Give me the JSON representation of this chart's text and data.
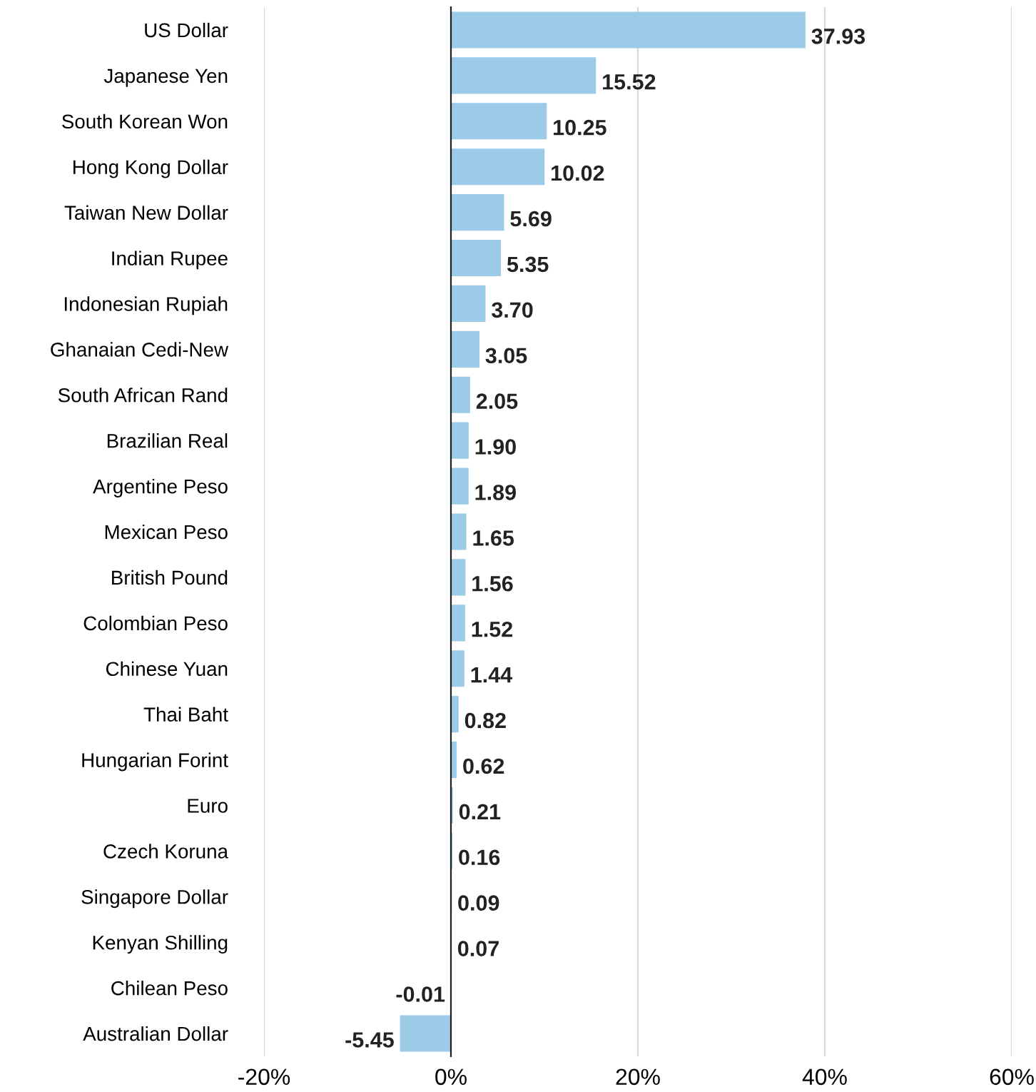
{
  "chart_data": {
    "type": "bar",
    "orientation": "horizontal",
    "categories": [
      "US Dollar",
      "Japanese Yen",
      "South Korean Won",
      "Hong Kong Dollar",
      "Taiwan New Dollar",
      "Indian Rupee",
      "Indonesian Rupiah",
      "Ghanaian Cedi-New",
      "South African Rand",
      "Brazilian Real",
      "Argentine Peso",
      "Mexican Peso",
      "British Pound",
      "Colombian Peso",
      "Chinese Yuan",
      "Thai Baht",
      "Hungarian Forint",
      "Euro",
      "Czech Koruna",
      "Singapore Dollar",
      "Kenyan Shilling",
      "Chilean Peso",
      "Australian Dollar"
    ],
    "values": [
      37.93,
      15.52,
      10.25,
      10.02,
      5.69,
      5.35,
      3.7,
      3.05,
      2.05,
      1.9,
      1.89,
      1.65,
      1.56,
      1.52,
      1.44,
      0.82,
      0.62,
      0.21,
      0.16,
      0.09,
      0.07,
      -0.01,
      -5.45
    ],
    "value_labels": [
      "37.93",
      "15.52",
      "10.25",
      "10.02",
      "5.69",
      "5.35",
      "3.70",
      "3.05",
      "2.05",
      "1.90",
      "1.89",
      "1.65",
      "1.56",
      "1.52",
      "1.44",
      "0.82",
      "0.62",
      "0.21",
      "0.16",
      "0.09",
      "0.07",
      "-0.01",
      "-5.45"
    ],
    "color": "#9ccbe7",
    "xlim": [
      -20,
      60
    ],
    "xticks": [
      {
        "value": -20,
        "label": "-20%"
      },
      {
        "value": 0,
        "label": "0%"
      },
      {
        "value": 20,
        "label": "20%"
      },
      {
        "value": 40,
        "label": "40%"
      },
      {
        "value": 60,
        "label": "60%"
      }
    ],
    "grid": "x",
    "legend": false
  }
}
